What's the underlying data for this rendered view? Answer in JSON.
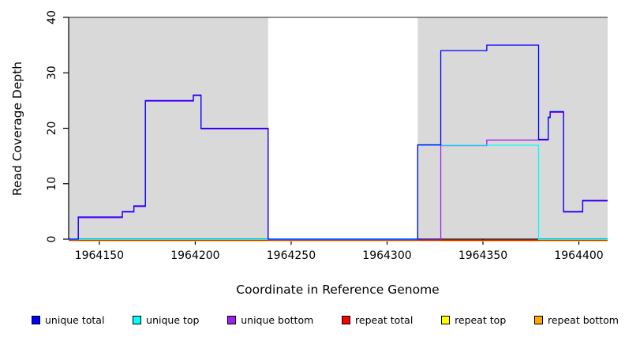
{
  "chart_data": {
    "type": "line",
    "subtype": "step-after",
    "title": "",
    "xlabel": "Coordinate in Reference Genome",
    "ylabel": "Read Coverage Depth",
    "xlim": [
      1964134,
      1964415
    ],
    "ylim": [
      0,
      40
    ],
    "xticks": [
      1964150,
      1964200,
      1964250,
      1964300,
      1964350,
      1964400
    ],
    "yticks": [
      0,
      10,
      20,
      30,
      40
    ],
    "grid": "off",
    "legend_position": "bottom",
    "shaded_regions": [
      {
        "x0": 1964134,
        "x1": 1964238,
        "color": "#d9d9d9"
      },
      {
        "x0": 1964316,
        "x1": 1964415,
        "color": "#d9d9d9"
      }
    ],
    "series": [
      {
        "name": "unique total",
        "color": "#0000FF",
        "points": [
          [
            1964134,
            0
          ],
          [
            1964139,
            4
          ],
          [
            1964162,
            5
          ],
          [
            1964168,
            6
          ],
          [
            1964174,
            25
          ],
          [
            1964199,
            26
          ],
          [
            1964203,
            20
          ],
          [
            1964238,
            0
          ],
          [
            1964316,
            17
          ],
          [
            1964328,
            34
          ],
          [
            1964352,
            35
          ],
          [
            1964379,
            18
          ],
          [
            1964384,
            22
          ],
          [
            1964385,
            23
          ],
          [
            1964392,
            5
          ],
          [
            1964402,
            7
          ],
          [
            1964415,
            7
          ]
        ]
      },
      {
        "name": "unique top",
        "color": "#00FFFF",
        "points": [
          [
            1964134,
            0
          ],
          [
            1964316,
            17
          ],
          [
            1964379,
            0
          ],
          [
            1964415,
            0
          ]
        ]
      },
      {
        "name": "unique bottom",
        "color": "#A020F0",
        "points": [
          [
            1964134,
            0
          ],
          [
            1964139,
            4
          ],
          [
            1964162,
            5
          ],
          [
            1964168,
            6
          ],
          [
            1964174,
            25
          ],
          [
            1964199,
            26
          ],
          [
            1964203,
            20
          ],
          [
            1964238,
            0
          ],
          [
            1964328,
            17
          ],
          [
            1964352,
            18
          ],
          [
            1964384,
            22
          ],
          [
            1964385,
            23
          ],
          [
            1964392,
            5
          ],
          [
            1964402,
            7
          ],
          [
            1964415,
            7
          ]
        ]
      },
      {
        "name": "repeat total",
        "color": "#FF0000",
        "points": [
          [
            1964134,
            0
          ],
          [
            1964415,
            0
          ]
        ]
      },
      {
        "name": "repeat top",
        "color": "#FFFF00",
        "points": [
          [
            1964134,
            0
          ],
          [
            1964415,
            0
          ]
        ]
      },
      {
        "name": "repeat bottom",
        "color": "#FFA500",
        "points": [
          [
            1964134,
            0
          ],
          [
            1964415,
            0
          ]
        ]
      }
    ],
    "axis_color": "#000000",
    "top_border_color": "#4d4d4d"
  }
}
